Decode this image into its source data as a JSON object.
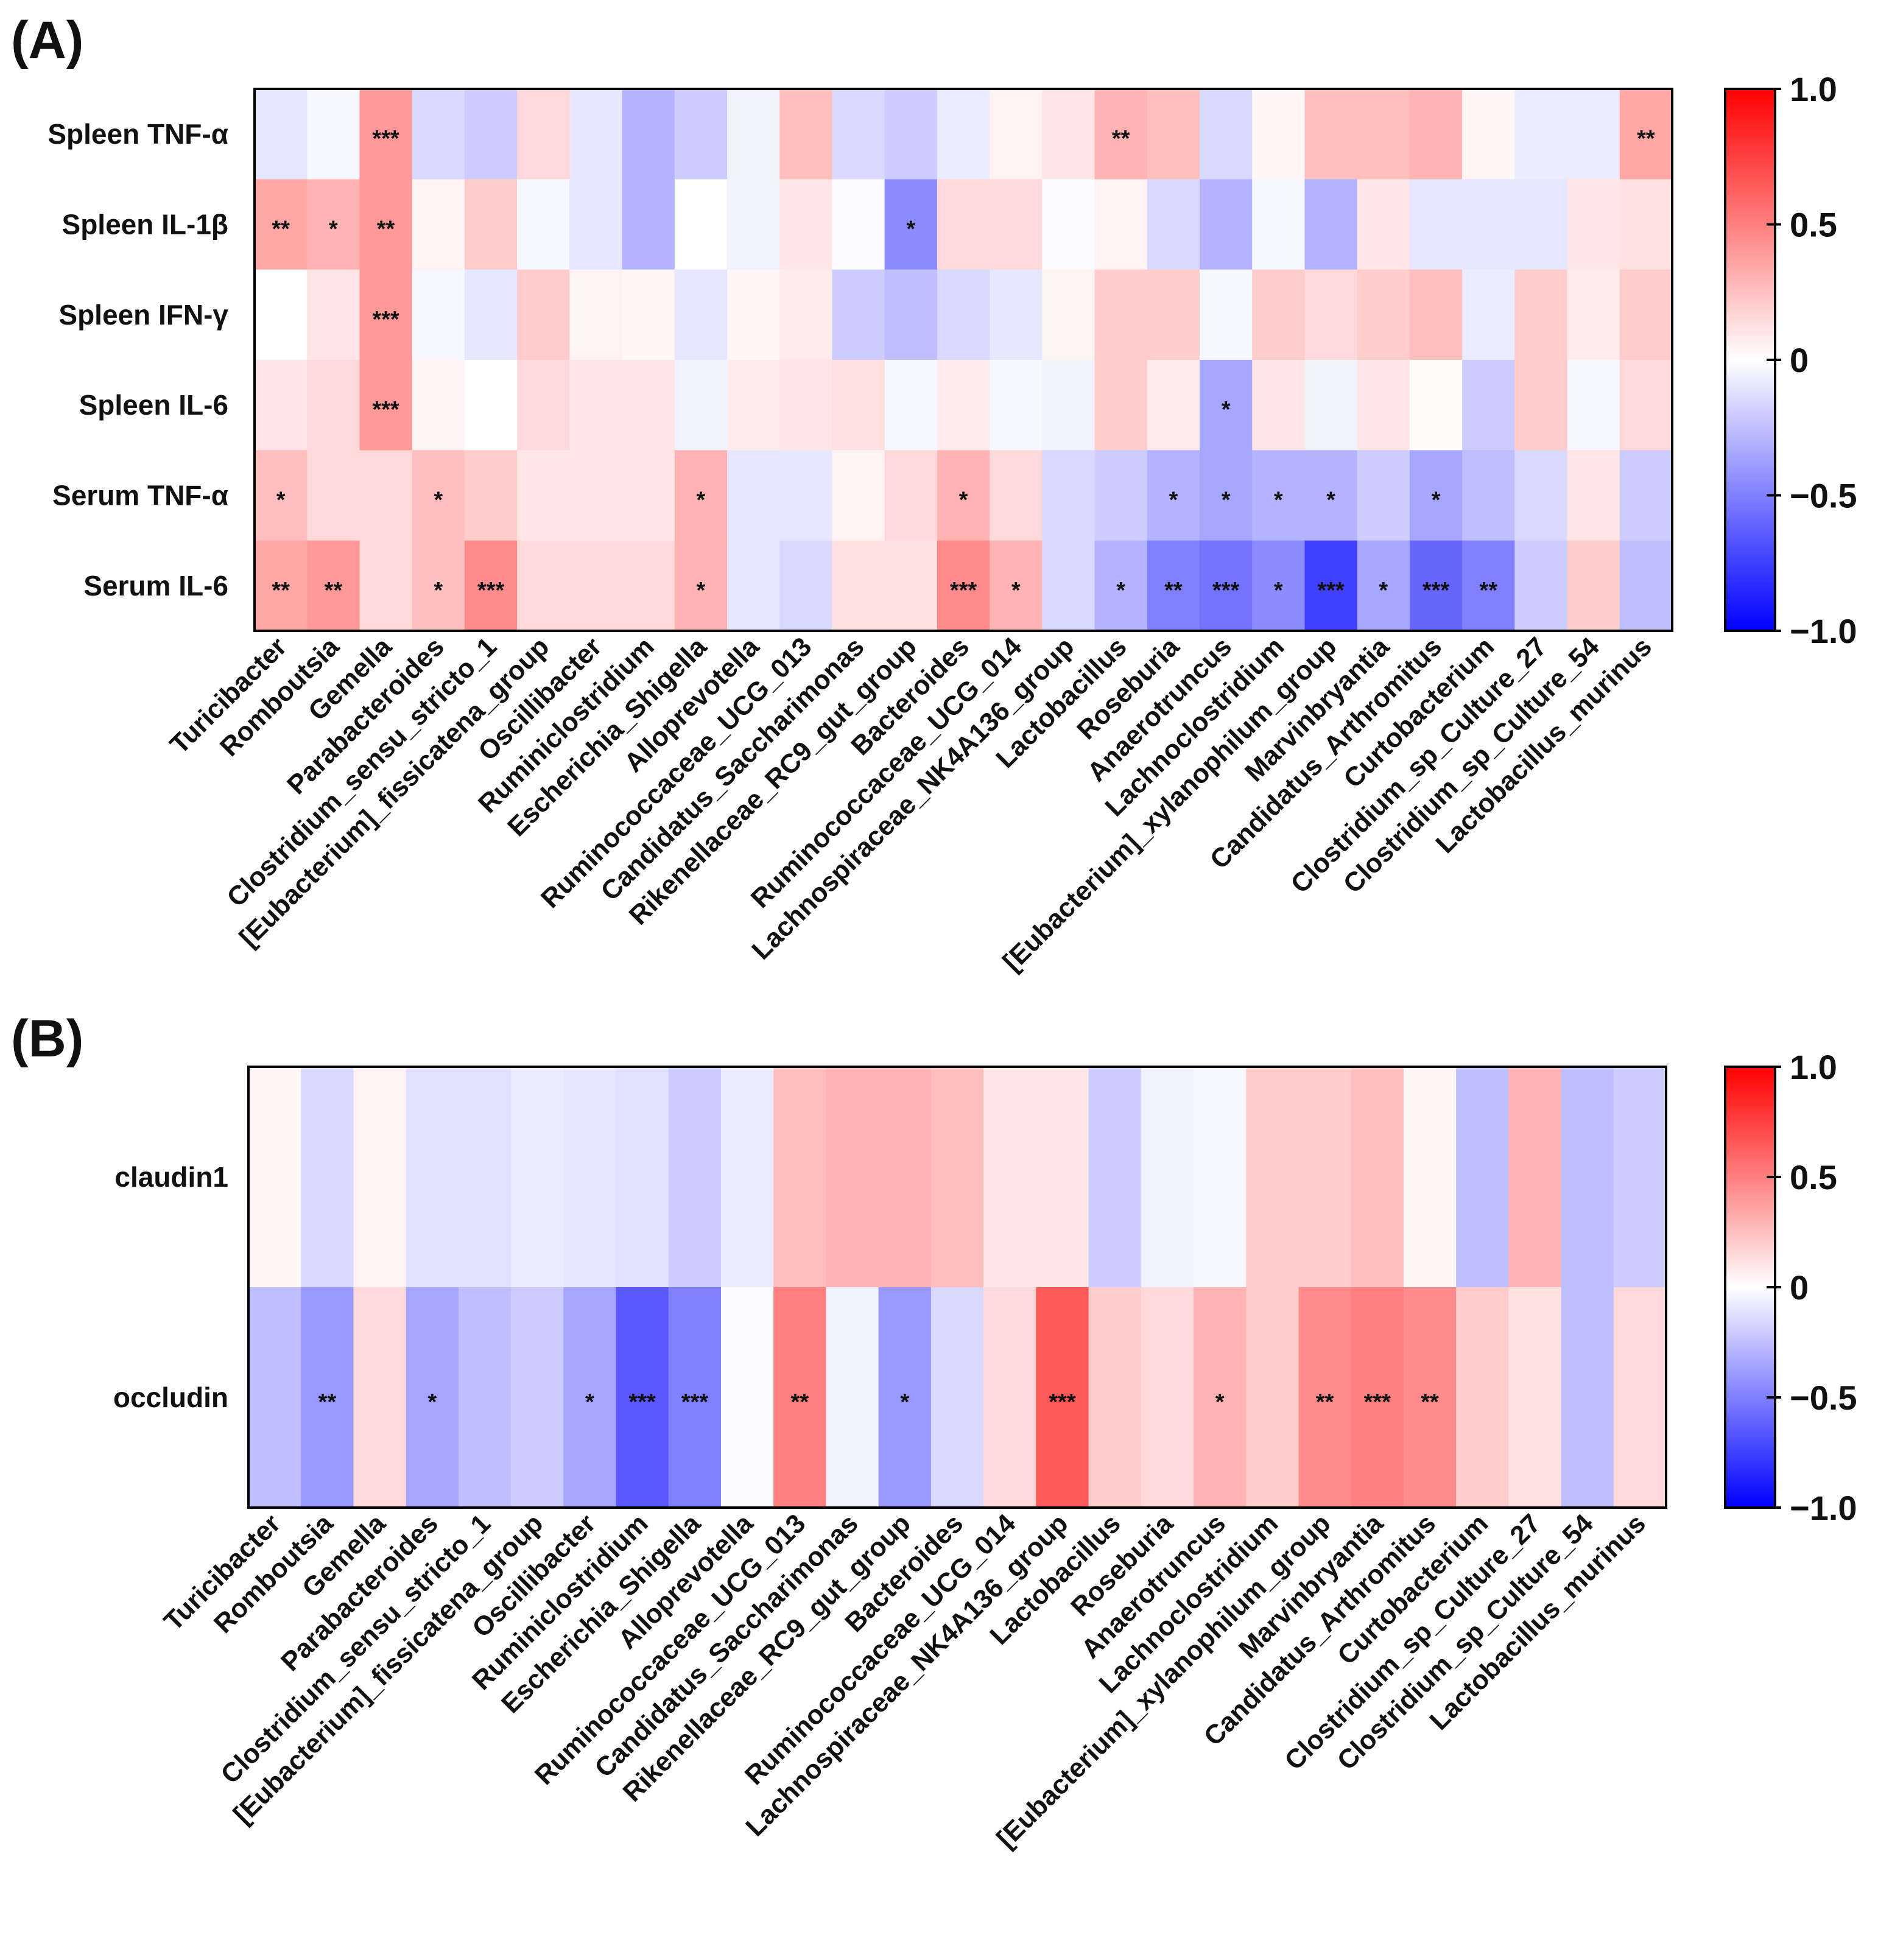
{
  "chart_data": [
    {
      "type": "heatmap",
      "panel_label": "(A)",
      "rows": [
        "Spleen TNF-α",
        "Spleen IL-1β",
        "Spleen IFN-γ",
        "Spleen IL-6",
        "Serum TNF-α",
        "Serum IL-6"
      ],
      "columns": [
        "Turicibacter",
        "Romboutsia",
        "Gemella",
        "Parabacteroides",
        "Clostridium_sensu_stricto_1",
        "[Eubacterium]_fissicatena_group",
        "Oscillibacter",
        "Ruminiclostridium",
        "Escherichia_Shigella",
        "Alloprevotella",
        "Ruminococcaceae_UCG_013",
        "Candidatus_Saccharimonas",
        "Rikenellaceae_RC9_gut_group",
        "Bacteroides",
        "Ruminococcaceae_UCG_014",
        "Lachnospiraceae_NK4A136_group",
        "Lactobacillus",
        "Roseburia",
        "Anaerotruncus",
        "Lachnoclostridium",
        "[Eubacterium]_xylanophilum_group",
        "Marvinbryantia",
        "Candidatus_Arthromitus",
        "Curtobacterium",
        "Clostridium_sp_Culture_27",
        "Clostridium_sp_Culture_54",
        "Lactobacillus_murinus"
      ],
      "values": [
        [
          -0.1,
          -0.03,
          0.4,
          -0.15,
          -0.2,
          0.15,
          -0.1,
          -0.3,
          -0.2,
          -0.05,
          0.25,
          -0.15,
          -0.2,
          -0.08,
          0.05,
          0.1,
          0.3,
          0.25,
          -0.15,
          0.03,
          0.25,
          0.25,
          0.3,
          0.03,
          -0.08,
          -0.08,
          0.35
        ],
        [
          0.35,
          0.3,
          0.4,
          0.05,
          0.2,
          -0.03,
          -0.1,
          -0.3,
          0.0,
          -0.05,
          0.1,
          -0.02,
          -0.45,
          0.15,
          0.15,
          -0.02,
          0.05,
          -0.15,
          -0.3,
          -0.03,
          -0.3,
          0.1,
          -0.1,
          -0.1,
          -0.1,
          0.1,
          0.12
        ],
        [
          0.0,
          0.1,
          0.4,
          -0.03,
          -0.1,
          0.2,
          0.05,
          0.03,
          -0.1,
          0.03,
          0.08,
          -0.2,
          -0.25,
          -0.15,
          -0.1,
          0.05,
          0.2,
          0.2,
          -0.03,
          0.2,
          0.15,
          0.2,
          0.25,
          -0.08,
          0.2,
          0.08,
          0.2
        ],
        [
          0.1,
          0.15,
          0.4,
          0.05,
          0.0,
          0.15,
          0.1,
          0.1,
          -0.05,
          0.08,
          0.1,
          0.12,
          -0.03,
          0.08,
          -0.03,
          -0.05,
          0.2,
          0.08,
          -0.35,
          0.1,
          -0.05,
          0.1,
          0.02,
          -0.2,
          0.2,
          -0.03,
          0.15
        ],
        [
          0.25,
          0.15,
          0.15,
          0.25,
          0.2,
          0.1,
          0.1,
          0.1,
          0.3,
          -0.1,
          -0.1,
          0.05,
          0.15,
          0.3,
          0.15,
          -0.15,
          -0.2,
          -0.3,
          -0.35,
          -0.3,
          -0.3,
          -0.2,
          -0.35,
          -0.25,
          -0.15,
          0.1,
          -0.2
        ],
        [
          0.35,
          0.4,
          0.15,
          0.25,
          0.45,
          0.15,
          0.15,
          0.15,
          0.3,
          -0.1,
          -0.15,
          0.12,
          0.12,
          0.45,
          0.3,
          -0.15,
          -0.3,
          -0.5,
          -0.55,
          -0.45,
          -0.75,
          -0.35,
          -0.6,
          -0.5,
          -0.2,
          0.2,
          -0.25
        ]
      ],
      "annotations": [
        [
          "",
          "",
          "***",
          "",
          "",
          "",
          "",
          "",
          "",
          "",
          "",
          "",
          "",
          "",
          "",
          "",
          "**",
          "",
          "",
          "",
          "",
          "",
          "",
          "",
          "",
          "",
          "**"
        ],
        [
          "**",
          "*",
          "**",
          "",
          "",
          "",
          "",
          "",
          "",
          "",
          "",
          "",
          "*",
          "",
          "",
          "",
          "",
          "",
          "",
          "",
          "",
          "",
          "",
          "",
          "",
          "",
          ""
        ],
        [
          "",
          "",
          "***",
          "",
          "",
          "",
          "",
          "",
          "",
          "",
          "",
          "",
          "",
          "",
          "",
          "",
          "",
          "",
          "",
          "",
          "",
          "",
          "",
          "",
          "",
          "",
          ""
        ],
        [
          "",
          "",
          "***",
          "",
          "",
          "",
          "",
          "",
          "",
          "",
          "",
          "",
          "",
          "",
          "",
          "",
          "",
          "",
          "*",
          "",
          "",
          "",
          "",
          "",
          "",
          "",
          ""
        ],
        [
          "*",
          "",
          "",
          "*",
          "",
          "",
          "",
          "",
          "*",
          "",
          "",
          "",
          "",
          "*",
          "",
          "",
          "",
          "*",
          "*",
          "*",
          "*",
          "",
          "*",
          "",
          "",
          "",
          ""
        ],
        [
          "**",
          "**",
          "",
          "*",
          "***",
          "",
          "",
          "",
          "*",
          "",
          "",
          "",
          "",
          "***",
          "*",
          "",
          "*",
          "**",
          "***",
          "*",
          "***",
          "*",
          "***",
          "**",
          "",
          "",
          ""
        ]
      ],
      "colorbar_ticks": [
        "1.0",
        "0.5",
        "0",
        "−0.5",
        "−1.0"
      ],
      "vmin": -1.0,
      "vmax": 1.0,
      "colors": {
        "low": "#0000ff",
        "mid": "#ffffff",
        "high": "#ff0000"
      }
    },
    {
      "type": "heatmap",
      "panel_label": "(B)",
      "rows": [
        "claudin1",
        "occludin"
      ],
      "columns": [
        "Turicibacter",
        "Romboutsia",
        "Gemella",
        "Parabacteroides",
        "Clostridium_sensu_stricto_1",
        "[Eubacterium]_fissicatena_group",
        "Oscillibacter",
        "Ruminiclostridium",
        "Escherichia_Shigella",
        "Alloprevotella",
        "Ruminococcaceae_UCG_013",
        "Candidatus_Saccharimonas",
        "Rikenellaceae_RC9_gut_group",
        "Bacteroides",
        "Ruminococcaceae_UCG_014",
        "Lachnospiraceae_NK4A136_group",
        "Lactobacillus",
        "Roseburia",
        "Anaerotruncus",
        "Lachnoclostridium",
        "[Eubacterium]_xylanophilum_group",
        "Marvinbryantia",
        "Candidatus_Arthromitus",
        "Curtobacterium",
        "Clostridium_sp_Culture_27",
        "Clostridium_sp_Culture_54",
        "Lactobacillus_murinus"
      ],
      "values": [
        [
          0.03,
          -0.15,
          0.05,
          -0.12,
          -0.12,
          -0.08,
          -0.1,
          -0.12,
          -0.2,
          -0.08,
          0.25,
          0.3,
          0.3,
          0.25,
          0.1,
          0.1,
          -0.2,
          -0.05,
          -0.03,
          0.2,
          0.2,
          0.25,
          0.03,
          -0.25,
          0.3,
          -0.25,
          -0.2
        ],
        [
          -0.25,
          -0.4,
          0.15,
          -0.35,
          -0.25,
          -0.2,
          -0.35,
          -0.65,
          -0.5,
          -0.02,
          0.5,
          -0.05,
          -0.4,
          -0.15,
          0.15,
          0.65,
          0.2,
          0.15,
          0.3,
          0.2,
          0.45,
          0.5,
          0.45,
          0.2,
          0.12,
          -0.25,
          0.15
        ]
      ],
      "annotations": [
        [
          "",
          "",
          "",
          "",
          "",
          "",
          "",
          "",
          "",
          "",
          "",
          "",
          "",
          "",
          "",
          "",
          "",
          "",
          "",
          "",
          "",
          "",
          "",
          "",
          "",
          "",
          ""
        ],
        [
          "",
          "**",
          "",
          "*",
          "",
          "",
          "*",
          "***",
          "***",
          "",
          "**",
          "",
          "*",
          "",
          "",
          "***",
          "",
          "",
          "*",
          "",
          "**",
          "***",
          "**",
          "",
          "",
          "",
          ""
        ]
      ],
      "colorbar_ticks": [
        "1.0",
        "0.5",
        "0",
        "−0.5",
        "−1.0"
      ],
      "vmin": -1.0,
      "vmax": 1.0,
      "colors": {
        "low": "#0000ff",
        "mid": "#ffffff",
        "high": "#ff0000"
      }
    }
  ]
}
